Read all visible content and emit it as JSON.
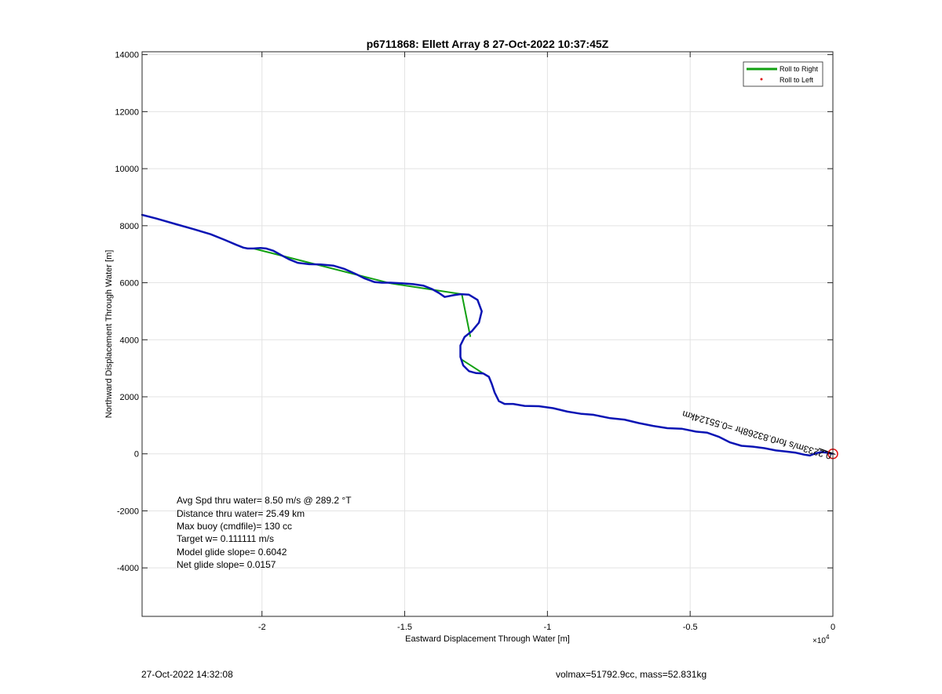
{
  "chart_data": {
    "type": "line",
    "title": "p6711868: Ellett Array 8 27-Oct-2022 10:37:45Z",
    "xlabel": "Eastward Displacement Through Water [m]",
    "ylabel": "Northward Displacement Through Water [m]",
    "x_exponent_label": "×10",
    "x_exponent": "4",
    "xlim": [
      -24200,
      0
    ],
    "ylim": [
      -5700,
      14100
    ],
    "xticks": [
      {
        "value": -20000,
        "label": "-2"
      },
      {
        "value": -15000,
        "label": "-1.5"
      },
      {
        "value": -10000,
        "label": "-1"
      },
      {
        "value": -5000,
        "label": "-0.5"
      },
      {
        "value": 0,
        "label": "0"
      }
    ],
    "yticks": [
      {
        "value": -4000,
        "label": "-4000"
      },
      {
        "value": -2000,
        "label": "-2000"
      },
      {
        "value": 0,
        "label": "0"
      },
      {
        "value": 2000,
        "label": "2000"
      },
      {
        "value": 4000,
        "label": "4000"
      },
      {
        "value": 6000,
        "label": "6000"
      },
      {
        "value": 8000,
        "label": "8000"
      },
      {
        "value": 10000,
        "label": "10000"
      },
      {
        "value": 12000,
        "label": "12000"
      },
      {
        "value": 14000,
        "label": "14000"
      }
    ],
    "grid": true,
    "legend": {
      "placement": "top-right",
      "entries": [
        {
          "label": "Roll to Right",
          "color": "#11a011",
          "style": "line"
        },
        {
          "label": "Roll to Left",
          "color": "#e01010",
          "style": "dot"
        }
      ]
    },
    "series": [
      {
        "color": "#0a14b4",
        "x": [
          -24200,
          -23700,
          -23000,
          -22400,
          -21800,
          -21300,
          -20900,
          -20650,
          -20500,
          -20300,
          -20050,
          -19850,
          -19600,
          -19350,
          -19050,
          -18750,
          -18350,
          -17950,
          -17500,
          -17100,
          -16700,
          -16400,
          -16050,
          -15800,
          -15500,
          -15100,
          -14700,
          -14350,
          -14050,
          -13800,
          -13600,
          -13300,
          -13050,
          -12750,
          -12450,
          -12300,
          -12400,
          -12650,
          -12900,
          -13050,
          -13050,
          -12950,
          -12750,
          -12500,
          -12250,
          -12050,
          -11950,
          -11850,
          -11700,
          -11500,
          -11200,
          -10800,
          -10300,
          -9800,
          -9300,
          -8800,
          -8400,
          -7800,
          -7300,
          -6800,
          -6300,
          -5800,
          -5300,
          -4800,
          -4400,
          -4000,
          -3600,
          -3200,
          -2800,
          -2400,
          -2000,
          -1650,
          -1300,
          -1000,
          -800,
          -600,
          -400,
          -200,
          0
        ],
        "y": [
          8380,
          8250,
          8050,
          7880,
          7700,
          7500,
          7330,
          7230,
          7200,
          7200,
          7220,
          7200,
          7120,
          6980,
          6820,
          6700,
          6650,
          6640,
          6600,
          6480,
          6300,
          6150,
          6020,
          6000,
          6000,
          5980,
          5950,
          5900,
          5780,
          5640,
          5500,
          5560,
          5600,
          5580,
          5400,
          5000,
          4600,
          4300,
          4100,
          3800,
          3400,
          3100,
          2900,
          2830,
          2820,
          2700,
          2450,
          2150,
          1850,
          1750,
          1750,
          1680,
          1670,
          1600,
          1480,
          1400,
          1370,
          1250,
          1200,
          1080,
          980,
          900,
          880,
          780,
          740,
          600,
          400,
          280,
          250,
          200,
          120,
          80,
          40,
          -30,
          -60,
          20,
          60,
          40,
          0
        ]
      },
      {
        "color": "#11a011",
        "segments": [
          {
            "x": [
              -20300,
              -15500
            ],
            "y": [
              7200,
              5980
            ]
          },
          {
            "x": [
              -15500,
              -13000
            ],
            "y": [
              5980,
              5600
            ]
          },
          {
            "x": [
              -13000,
              -12700
            ],
            "y": [
              5600,
              4100
            ]
          },
          {
            "x": [
              -13000,
              -12250
            ],
            "y": [
              3300,
              2820
            ]
          }
        ]
      }
    ],
    "annotations": {
      "speed_label": "0.2233m/s for0.83268hr =0.55124km",
      "end_marker_color": "#e01010",
      "stats": [
        "Avg Spd thru water=  8.50 m/s @ 289.2 °T",
        "Distance thru water= 25.49 km",
        "Max buoy (cmdfile)= 130 cc",
        "Target w= 0.111111 m/s",
        "Model glide slope= 0.6042",
        "Net glide slope= 0.0157"
      ]
    }
  },
  "footer": {
    "timestamp": "27-Oct-2022 14:32:08",
    "info": "volmax=51792.9cc, mass=52.831kg"
  }
}
